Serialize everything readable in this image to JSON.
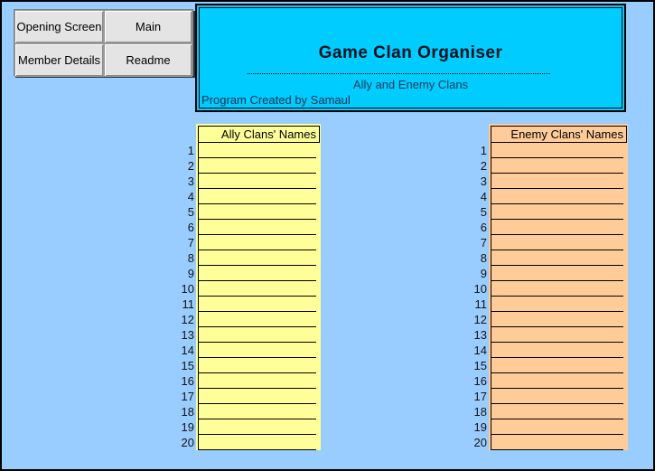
{
  "colors": {
    "background": "#99CCFF",
    "header_bg": "#00CCFF",
    "ally_fill": "#FFFF99",
    "enemy_fill": "#FFCC99"
  },
  "nav": {
    "buttons": [
      {
        "id": "opening-screen",
        "label": "Opening Screen"
      },
      {
        "id": "main",
        "label": "Main"
      },
      {
        "id": "member-details",
        "label": "Member Details"
      },
      {
        "id": "readme",
        "label": "Readme"
      }
    ]
  },
  "header": {
    "title": "Game Clan Organiser",
    "subtitle": "Ally and Enemy Clans",
    "credit": "Program Created by Samaul"
  },
  "ally_table": {
    "title": "Ally Clans' Names",
    "rows": [
      {
        "num": "1",
        "value": ""
      },
      {
        "num": "2",
        "value": ""
      },
      {
        "num": "3",
        "value": ""
      },
      {
        "num": "4",
        "value": ""
      },
      {
        "num": "5",
        "value": ""
      },
      {
        "num": "6",
        "value": ""
      },
      {
        "num": "7",
        "value": ""
      },
      {
        "num": "8",
        "value": ""
      },
      {
        "num": "9",
        "value": ""
      },
      {
        "num": "10",
        "value": ""
      },
      {
        "num": "11",
        "value": ""
      },
      {
        "num": "12",
        "value": ""
      },
      {
        "num": "13",
        "value": ""
      },
      {
        "num": "14",
        "value": ""
      },
      {
        "num": "15",
        "value": ""
      },
      {
        "num": "16",
        "value": ""
      },
      {
        "num": "17",
        "value": ""
      },
      {
        "num": "18",
        "value": ""
      },
      {
        "num": "19",
        "value": ""
      },
      {
        "num": "20",
        "value": ""
      }
    ]
  },
  "enemy_table": {
    "title": "Enemy Clans' Names",
    "rows": [
      {
        "num": "1",
        "value": ""
      },
      {
        "num": "2",
        "value": ""
      },
      {
        "num": "3",
        "value": ""
      },
      {
        "num": "4",
        "value": ""
      },
      {
        "num": "5",
        "value": ""
      },
      {
        "num": "6",
        "value": ""
      },
      {
        "num": "7",
        "value": ""
      },
      {
        "num": "8",
        "value": ""
      },
      {
        "num": "9",
        "value": ""
      },
      {
        "num": "10",
        "value": ""
      },
      {
        "num": "11",
        "value": ""
      },
      {
        "num": "12",
        "value": ""
      },
      {
        "num": "13",
        "value": ""
      },
      {
        "num": "14",
        "value": ""
      },
      {
        "num": "15",
        "value": ""
      },
      {
        "num": "16",
        "value": ""
      },
      {
        "num": "17",
        "value": ""
      },
      {
        "num": "18",
        "value": ""
      },
      {
        "num": "19",
        "value": ""
      },
      {
        "num": "20",
        "value": ""
      }
    ]
  }
}
